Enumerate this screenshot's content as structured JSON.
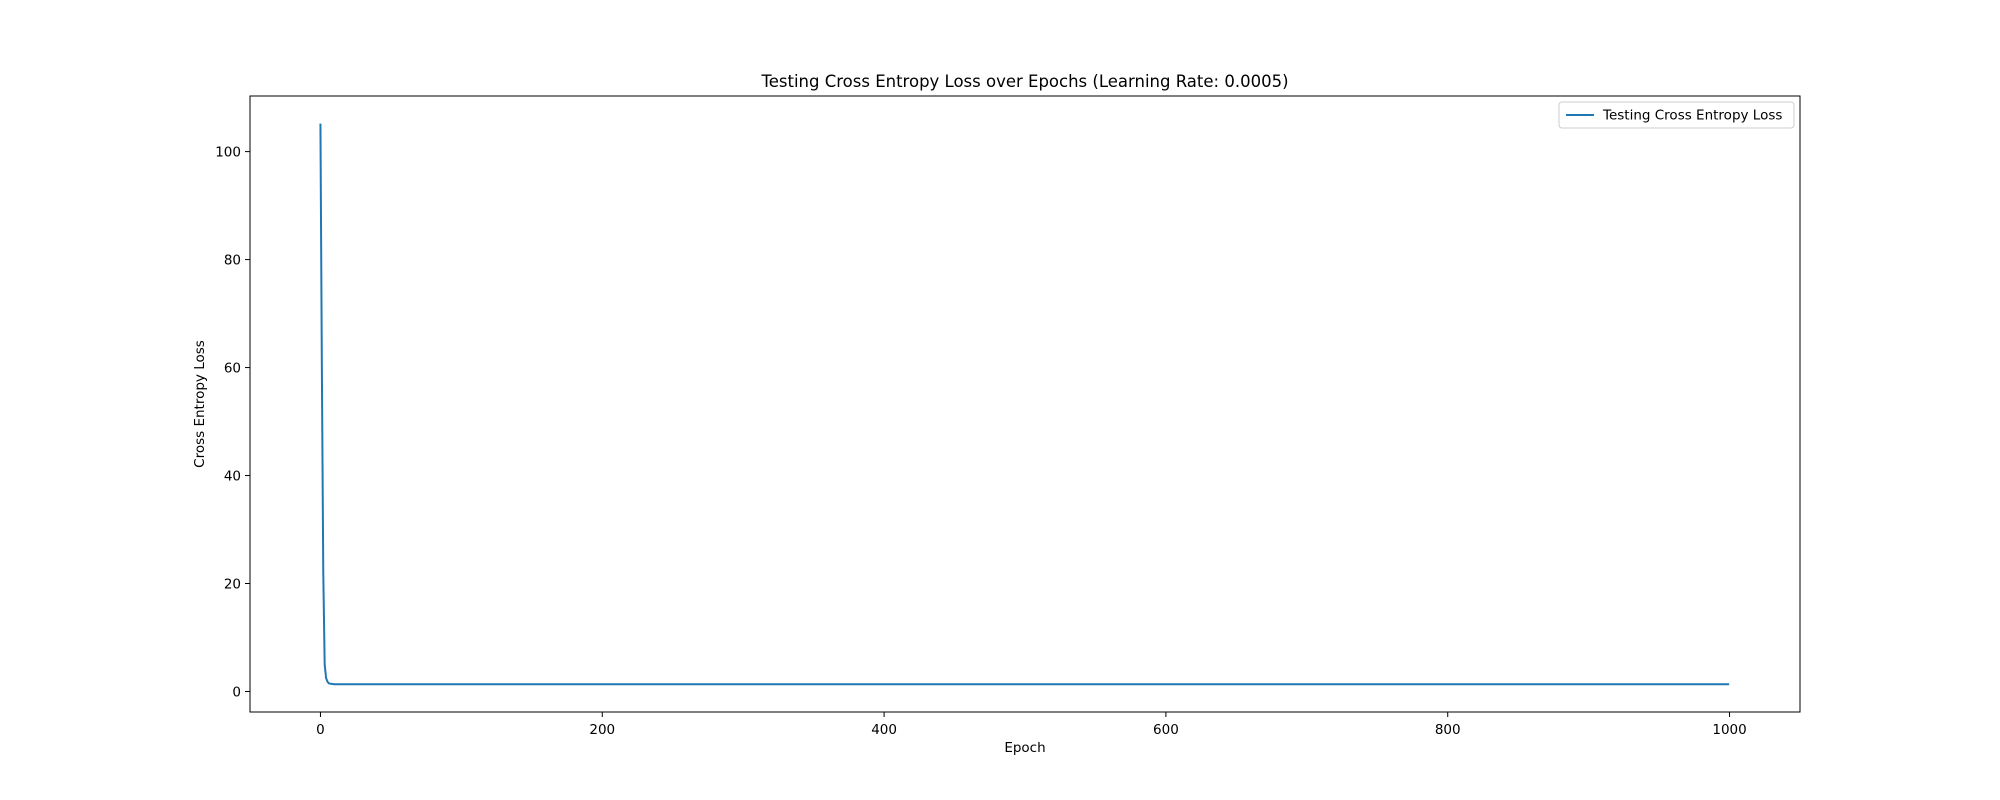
{
  "chart_data": {
    "type": "line",
    "title": "Testing Cross Entropy Loss over Epochs (Learning Rate: 0.0005)",
    "xlabel": "Epoch",
    "ylabel": "Cross Entropy Loss",
    "xlim": [
      -50,
      1050
    ],
    "ylim": [
      -3.8,
      110.3
    ],
    "xticks": [
      0,
      200,
      400,
      600,
      800,
      1000
    ],
    "xtick_labels": [
      "0",
      "200",
      "400",
      "600",
      "800",
      "1000"
    ],
    "yticks": [
      0,
      20,
      40,
      60,
      80,
      100
    ],
    "ytick_labels": [
      "0",
      "20",
      "40",
      "60",
      "80",
      "100"
    ],
    "grid": false,
    "legend_position": "top-right",
    "series": [
      {
        "name": "Testing Cross Entropy Loss",
        "color": "#1f77b4",
        "x": [
          0,
          1,
          2,
          3,
          4,
          5,
          6,
          8,
          10,
          15,
          20,
          50,
          100,
          200,
          300,
          400,
          500,
          600,
          700,
          800,
          900,
          999
        ],
        "y": [
          105.0,
          60.0,
          22.0,
          5.0,
          2.5,
          1.8,
          1.5,
          1.4,
          1.35,
          1.35,
          1.35,
          1.35,
          1.35,
          1.35,
          1.35,
          1.35,
          1.35,
          1.35,
          1.35,
          1.35,
          1.35,
          1.35
        ]
      }
    ]
  }
}
